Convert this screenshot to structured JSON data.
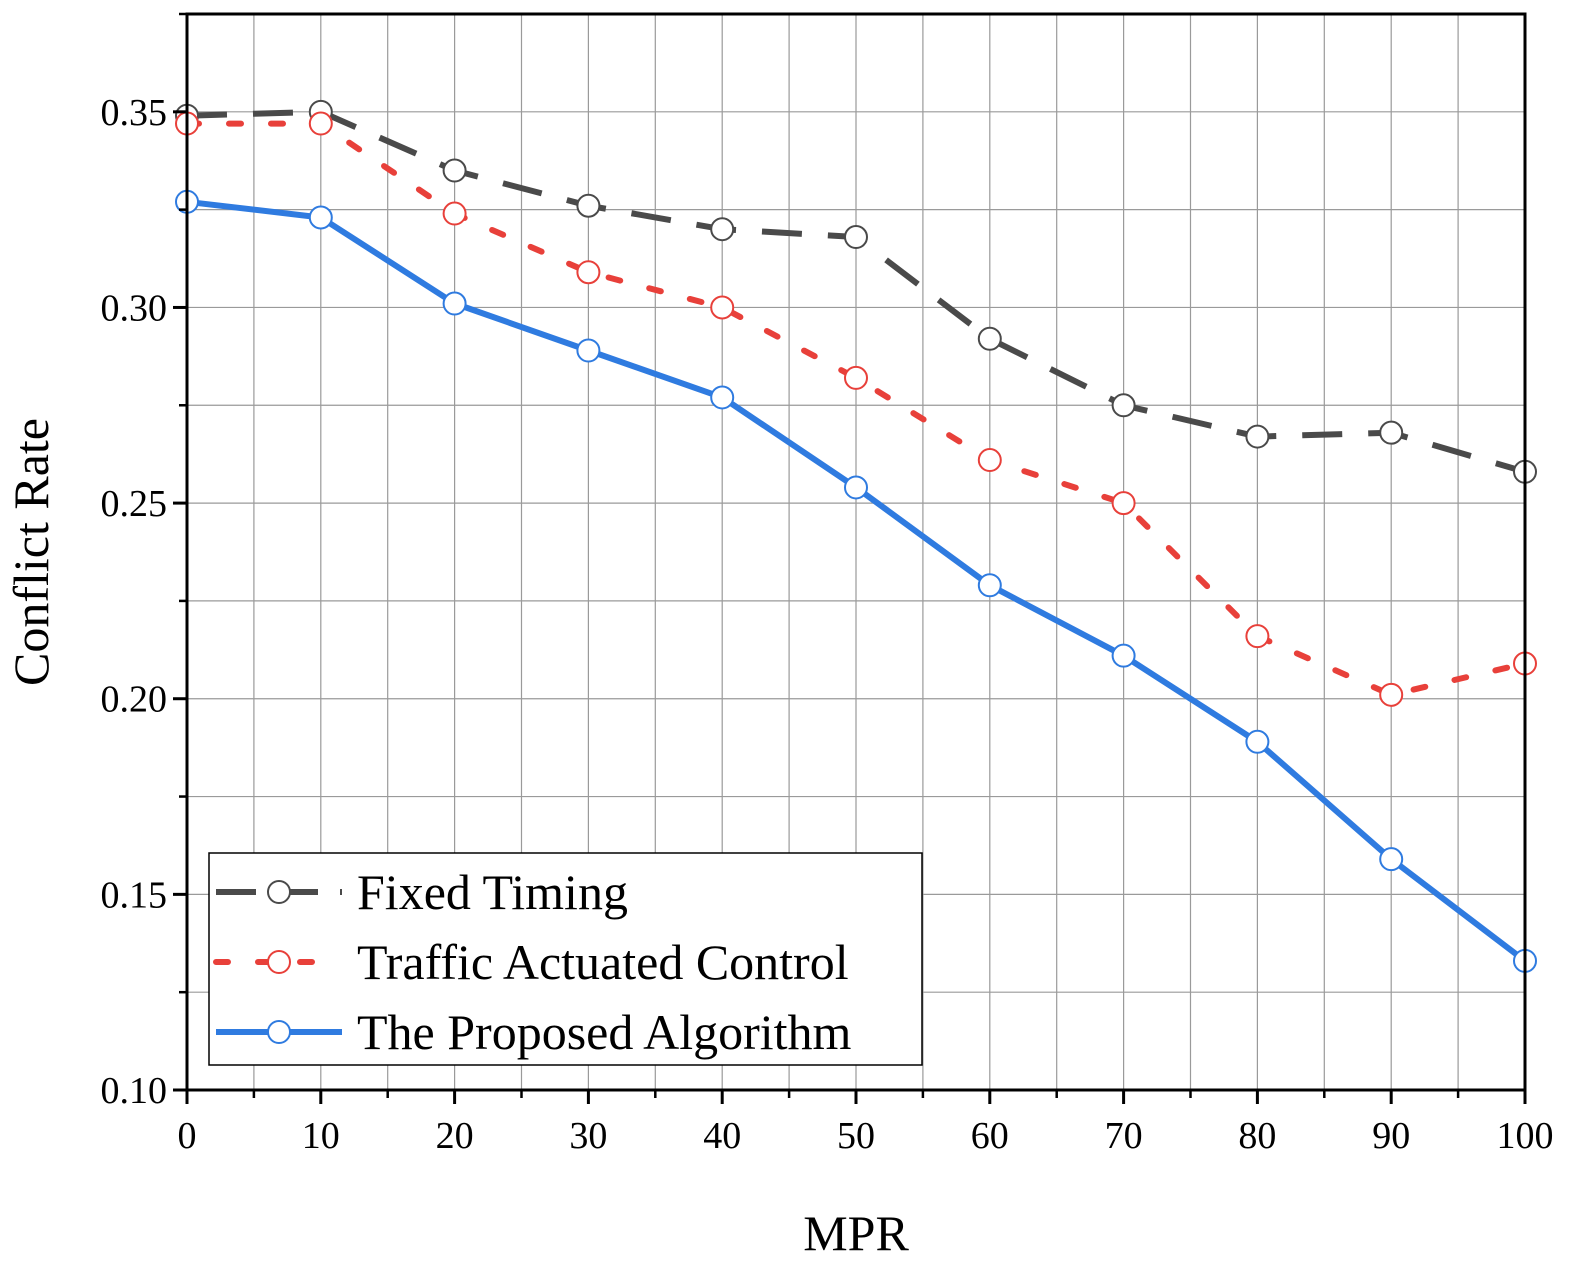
{
  "chart_data": {
    "type": "line",
    "title": "",
    "xlabel": "MPR",
    "ylabel": "Conflict Rate",
    "x": [
      0,
      10,
      20,
      30,
      40,
      50,
      60,
      70,
      80,
      90,
      100
    ],
    "xlim": [
      0,
      100
    ],
    "ylim": [
      0.1,
      0.375
    ],
    "x_ticks": [
      0,
      10,
      20,
      30,
      40,
      50,
      60,
      70,
      80,
      90,
      100
    ],
    "x_tick_labels": [
      "0",
      "10",
      "20",
      "30",
      "40",
      "50",
      "60",
      "70",
      "80",
      "90",
      "100"
    ],
    "y_ticks": [
      0.1,
      0.15,
      0.2,
      0.25,
      0.3,
      0.35
    ],
    "y_tick_labels": [
      "0.10",
      "0.15",
      "0.20",
      "0.25",
      "0.30",
      "0.35"
    ],
    "grid": true,
    "legend_position": "bottom-left",
    "series": [
      {
        "name": "Fixed Timing",
        "values": [
          0.349,
          0.35,
          0.335,
          0.326,
          0.32,
          0.318,
          0.292,
          0.275,
          0.267,
          0.268,
          0.258
        ],
        "color": "#4a4a4a",
        "marker_color": "#4a4a4a",
        "style": "dashed"
      },
      {
        "name": "Traffic Actuated Control",
        "values": [
          0.347,
          0.347,
          0.324,
          0.309,
          0.3,
          0.282,
          0.261,
          0.25,
          0.216,
          0.201,
          0.209
        ],
        "color": "#e8403a",
        "marker_color": "#e8403a",
        "style": "dotted"
      },
      {
        "name": "The Proposed Algorithm",
        "values": [
          0.327,
          0.323,
          0.301,
          0.289,
          0.277,
          0.254,
          0.229,
          0.211,
          0.189,
          0.159,
          0.133
        ],
        "color": "#2f7be0",
        "marker_color": "#2f7be0",
        "style": "solid"
      }
    ]
  }
}
